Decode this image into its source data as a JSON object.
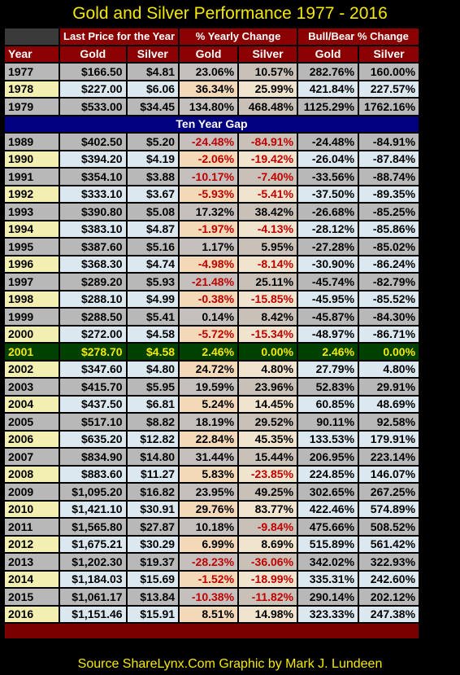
{
  "title": "Gold and Silver Performance 1977 - 2016",
  "group_headers": [
    "Last Price for the Year",
    "% Yearly Change",
    "Bull/Bear % Change"
  ],
  "column_headers": [
    "Year",
    "Gold",
    "Silver",
    "Gold",
    "Silver",
    "Gold",
    "Silver"
  ],
  "gap_label": "Ten Year Gap",
  "source": "Source ShareLynx.Com  Graphic by Mark J. Lundeen",
  "colors": {
    "title": "#f5e800",
    "header_bg": "#8b0000",
    "gap_bg": "#000080",
    "highlight_bg": "#004000",
    "negative": "#c00000"
  },
  "rows_top": [
    [
      "1977",
      "$166.50",
      "$4.81",
      "23.06%",
      "10.57%",
      "282.76%",
      "160.00%"
    ],
    [
      "1978",
      "$227.00",
      "$6.06",
      "36.34%",
      "25.99%",
      "421.84%",
      "227.57%"
    ],
    [
      "1979",
      "$533.00",
      "$34.45",
      "134.80%",
      "468.48%",
      "1125.29%",
      "1762.16%"
    ]
  ],
  "rows_mid": [
    [
      "1989",
      "$402.50",
      "$5.20",
      "-24.48%",
      "-84.91%",
      "-24.48%",
      "-84.91%"
    ],
    [
      "1990",
      "$394.20",
      "$4.19",
      "-2.06%",
      "-19.42%",
      "-26.04%",
      "-87.84%"
    ],
    [
      "1991",
      "$354.10",
      "$3.88",
      "-10.17%",
      "-7.40%",
      "-33.56%",
      "-88.74%"
    ],
    [
      "1992",
      "$333.10",
      "$3.67",
      "-5.93%",
      "-5.41%",
      "-37.50%",
      "-89.35%"
    ],
    [
      "1993",
      "$390.80",
      "$5.08",
      "17.32%",
      "38.42%",
      "-26.68%",
      "-85.25%"
    ],
    [
      "1994",
      "$383.10",
      "$4.87",
      "-1.97%",
      "-4.13%",
      "-28.12%",
      "-85.86%"
    ],
    [
      "1995",
      "$387.60",
      "$5.16",
      "1.17%",
      "5.95%",
      "-27.28%",
      "-85.02%"
    ],
    [
      "1996",
      "$368.30",
      "$4.74",
      "-4.98%",
      "-8.14%",
      "-30.90%",
      "-86.24%"
    ],
    [
      "1997",
      "$289.20",
      "$5.93",
      "-21.48%",
      "25.11%",
      "-45.74%",
      "-82.79%"
    ],
    [
      "1998",
      "$288.10",
      "$4.99",
      "-0.38%",
      "-15.85%",
      "-45.95%",
      "-85.52%"
    ],
    [
      "1999",
      "$288.50",
      "$5.41",
      "0.14%",
      "8.42%",
      "-45.87%",
      "-84.30%"
    ],
    [
      "2000",
      "$272.00",
      "$4.58",
      "-5.72%",
      "-15.34%",
      "-48.97%",
      "-86.71%"
    ]
  ],
  "row_highlight": [
    "2001",
    "$278.70",
    "$4.58",
    "2.46%",
    "0.00%",
    "2.46%",
    "0.00%"
  ],
  "rows_bottom": [
    [
      "2002",
      "$347.60",
      "$4.80",
      "24.72%",
      "4.80%",
      "27.79%",
      "4.80%"
    ],
    [
      "2003",
      "$415.70",
      "$5.95",
      "19.59%",
      "23.96%",
      "52.83%",
      "29.91%"
    ],
    [
      "2004",
      "$437.50",
      "$6.81",
      "5.24%",
      "14.45%",
      "60.85%",
      "48.69%"
    ],
    [
      "2005",
      "$517.10",
      "$8.82",
      "18.19%",
      "29.52%",
      "90.11%",
      "92.58%"
    ],
    [
      "2006",
      "$635.20",
      "$12.82",
      "22.84%",
      "45.35%",
      "133.53%",
      "179.91%"
    ],
    [
      "2007",
      "$834.90",
      "$14.80",
      "31.44%",
      "15.44%",
      "206.95%",
      "223.14%"
    ],
    [
      "2008",
      "$883.60",
      "$11.27",
      "5.83%",
      "-23.85%",
      "224.85%",
      "146.07%"
    ],
    [
      "2009",
      "$1,095.20",
      "$16.82",
      "23.95%",
      "49.25%",
      "302.65%",
      "267.25%"
    ],
    [
      "2010",
      "$1,421.10",
      "$30.91",
      "29.76%",
      "83.77%",
      "422.46%",
      "574.89%"
    ],
    [
      "2011",
      "$1,565.80",
      "$27.87",
      "10.18%",
      "-9.84%",
      "475.66%",
      "508.52%"
    ],
    [
      "2012",
      "$1,675.21",
      "$30.29",
      "6.99%",
      "8.69%",
      "515.89%",
      "561.42%"
    ],
    [
      "2013",
      "$1,202.30",
      "$19.37",
      "-28.23%",
      "-36.06%",
      "342.02%",
      "322.93%"
    ],
    [
      "2014",
      "$1,184.03",
      "$15.69",
      "-1.52%",
      "-18.99%",
      "335.31%",
      "242.60%"
    ],
    [
      "2015",
      "$1,061.17",
      "$13.84",
      "-10.38%",
      "-11.82%",
      "290.14%",
      "202.12%"
    ],
    [
      "2016",
      "$1,151.46",
      "$15.91",
      "8.51%",
      "14.98%",
      "323.33%",
      "247.38%"
    ]
  ]
}
